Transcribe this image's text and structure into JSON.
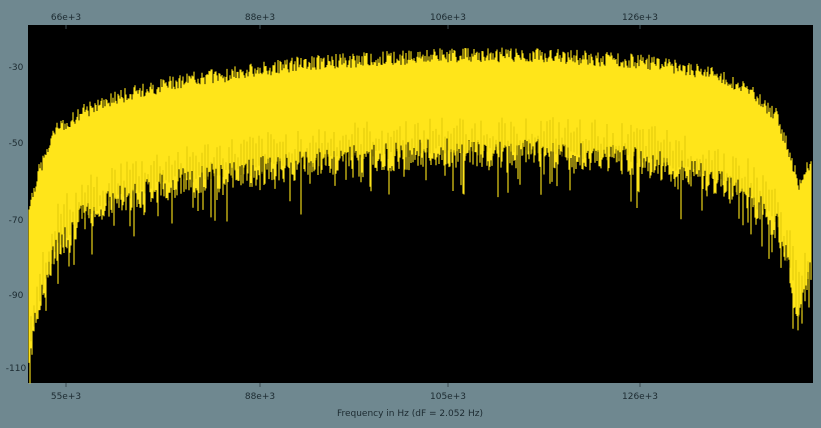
{
  "chart_data": {
    "type": "line",
    "title": "",
    "xlabel": "Frequency in Hz (dF = 2.052 Hz)",
    "ylabel": "",
    "x_ticks_top": [
      "66e+3",
      "88e+3",
      "106e+3",
      "126e+3"
    ],
    "x_ticks_bottom": [
      "55e+3",
      "88e+3",
      "105e+3",
      "126e+3"
    ],
    "y_ticks": [
      "-30",
      "-50",
      "-70",
      "-90",
      "-110"
    ],
    "xlim": [
      50000,
      135000
    ],
    "ylim": [
      -115,
      -20
    ],
    "grid": false,
    "legend": "none",
    "series": [
      {
        "color": "#ffe51a",
        "shade_color": "#c8b400",
        "envelope_x": [
          50000,
          51000,
          53000,
          56000,
          60000,
          66000,
          72000,
          80000,
          88000,
          95000,
          100000,
          106000,
          112000,
          118000,
          124000,
          128000,
          131000,
          132500,
          133500,
          134500
        ],
        "upper": [
          -70,
          -60,
          -48,
          -43,
          -39,
          -35,
          -33,
          -30,
          -29,
          -28,
          -28,
          -28,
          -29,
          -30,
          -33,
          -37,
          -44,
          -54,
          -63,
          -57
        ],
        "lower": [
          -110,
          -98,
          -80,
          -72,
          -67,
          -63,
          -61,
          -58,
          -56,
          -55,
          -55,
          -55,
          -56,
          -58,
          -62,
          -67,
          -74,
          -86,
          -100,
          -88
        ]
      }
    ]
  },
  "colors": {
    "background": "#6f8890",
    "plot_area": "#000000",
    "trace": "#ffe51a"
  }
}
